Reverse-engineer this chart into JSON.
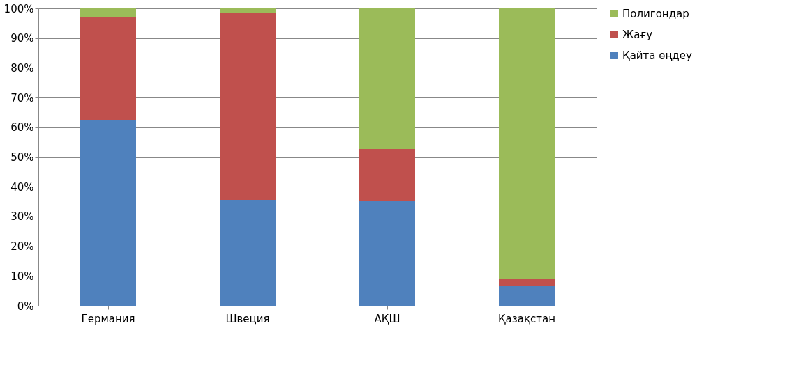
{
  "chart_data": {
    "type": "bar",
    "stacked": true,
    "categories": [
      "Германия",
      "Швеция",
      "АҚШ",
      "Қазақстан"
    ],
    "series": [
      {
        "name": "Қайта өңдеу",
        "color": "#4f81bd",
        "values": [
          62.3,
          35.6,
          35.1,
          6.8
        ]
      },
      {
        "name": "Жағу",
        "color": "#c0504d",
        "values": [
          34.7,
          63.0,
          17.6,
          2.1
        ]
      },
      {
        "name": "Полигондар",
        "color": "#9bbb59",
        "values": [
          3.0,
          1.4,
          47.3,
          91.1
        ]
      }
    ],
    "ylim": [
      0,
      100
    ],
    "yticks": [
      {
        "value": 0,
        "label": "0%"
      },
      {
        "value": 10,
        "label": "10%"
      },
      {
        "value": 20,
        "label": "20%"
      },
      {
        "value": 30,
        "label": "30%"
      },
      {
        "value": 40,
        "label": "40%"
      },
      {
        "value": 50,
        "label": "50%"
      },
      {
        "value": 60,
        "label": "60%"
      },
      {
        "value": 70,
        "label": "70%"
      },
      {
        "value": 80,
        "label": "80%"
      },
      {
        "value": 90,
        "label": "90%"
      },
      {
        "value": 100,
        "label": "100%"
      }
    ],
    "grid": "y",
    "legend": "right"
  }
}
